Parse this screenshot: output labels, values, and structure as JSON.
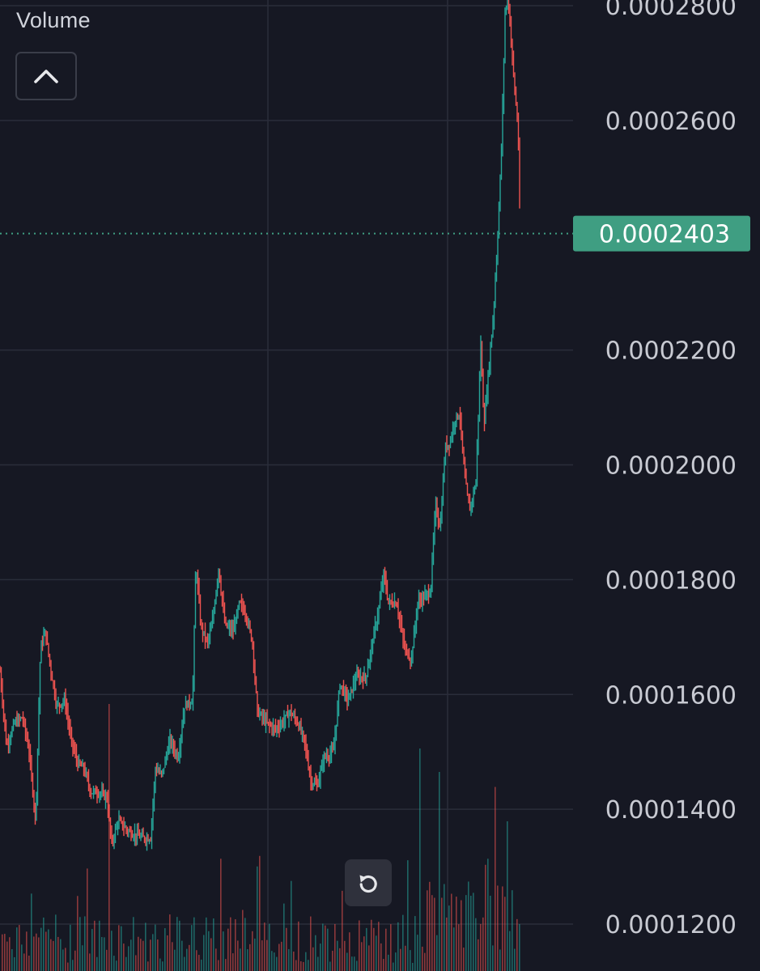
{
  "legend": {
    "title": "Volume"
  },
  "colors": {
    "background": "#161823",
    "grid": "#2a2d3a",
    "up": "#26a69a",
    "down": "#ef5350",
    "last_price_tag": "#3f9e82"
  },
  "icons": {
    "collapse": "chevron-up-icon",
    "reset": "rotate-left-icon"
  },
  "chart_data": {
    "type": "candlestick",
    "price_axis": {
      "ticks": [
        0.00028,
        0.00026,
        0.00022,
        0.0002,
        0.00018,
        0.00016,
        0.00014,
        0.00012
      ],
      "tick_labels": [
        "0.0002800",
        "0.0002600",
        "0.0002200",
        "0.0002000",
        "0.0001800",
        "0.0001600",
        "0.0001400",
        "0.0001200"
      ],
      "range": [
        0.000116,
        0.000281
      ]
    },
    "last_price": {
      "value": 0.0002403,
      "label": "0.0002403"
    },
    "grid": true,
    "series_name": "Volume",
    "price_path": [
      [
        0,
        0.000164
      ],
      [
        8,
        0.000151
      ],
      [
        18,
        0.000155
      ],
      [
        28,
        0.000156
      ],
      [
        36,
        0.00015
      ],
      [
        44,
        0.000138
      ],
      [
        50,
        0.000168
      ],
      [
        56,
        0.000171
      ],
      [
        62,
        0.000165
      ],
      [
        70,
        0.000158
      ],
      [
        80,
        0.000159
      ],
      [
        88,
        0.000152
      ],
      [
        96,
        0.000148
      ],
      [
        104,
        0.000147
      ],
      [
        112,
        0.000143
      ],
      [
        122,
        0.000143
      ],
      [
        132,
        0.000142
      ],
      [
        138,
        0.000134
      ],
      [
        146,
        0.000138
      ],
      [
        160,
        0.000136
      ],
      [
        176,
        0.000135
      ],
      [
        186,
        0.000135
      ],
      [
        192,
        0.000147
      ],
      [
        200,
        0.000146
      ],
      [
        210,
        0.000152
      ],
      [
        220,
        0.000149
      ],
      [
        228,
        0.000158
      ],
      [
        238,
        0.000159
      ],
      [
        242,
        0.000183
      ],
      [
        248,
        0.000172
      ],
      [
        256,
        0.000169
      ],
      [
        262,
        0.000172
      ],
      [
        270,
        0.000182
      ],
      [
        278,
        0.000172
      ],
      [
        288,
        0.000171
      ],
      [
        296,
        0.000176
      ],
      [
        304,
        0.000174
      ],
      [
        312,
        0.000169
      ],
      [
        318,
        0.000157
      ],
      [
        330,
        0.000155
      ],
      [
        340,
        0.000154
      ],
      [
        348,
        0.000155
      ],
      [
        358,
        0.000157
      ],
      [
        368,
        0.000155
      ],
      [
        376,
        0.000152
      ],
      [
        384,
        0.000145
      ],
      [
        392,
        0.000144
      ],
      [
        400,
        0.000149
      ],
      [
        412,
        0.00015
      ],
      [
        420,
        0.000162
      ],
      [
        430,
        0.000159
      ],
      [
        440,
        0.000163
      ],
      [
        452,
        0.000163
      ],
      [
        460,
        0.000169
      ],
      [
        468,
        0.000175
      ],
      [
        474,
        0.000181
      ],
      [
        480,
        0.000176
      ],
      [
        490,
        0.000176
      ],
      [
        500,
        0.000168
      ],
      [
        508,
        0.000166
      ],
      [
        516,
        0.000176
      ],
      [
        524,
        0.000177
      ],
      [
        532,
        0.000178
      ],
      [
        538,
        0.000193
      ],
      [
        544,
        0.000189
      ],
      [
        550,
        0.000203
      ],
      [
        556,
        0.000204
      ],
      [
        562,
        0.000208
      ],
      [
        568,
        0.000209
      ],
      [
        574,
        0.000198
      ],
      [
        580,
        0.000192
      ],
      [
        588,
        0.000197
      ],
      [
        594,
        0.000221
      ],
      [
        598,
        0.000207
      ],
      [
        604,
        0.000217
      ],
      [
        610,
        0.000227
      ],
      [
        616,
        0.000243
      ],
      [
        620,
        0.000257
      ],
      [
        624,
        0.000279
      ],
      [
        628,
        0.000281
      ],
      [
        632,
        0.000273
      ],
      [
        636,
        0.000265
      ],
      [
        640,
        0.000259
      ],
      [
        643,
        0.000238
      ]
    ]
  }
}
